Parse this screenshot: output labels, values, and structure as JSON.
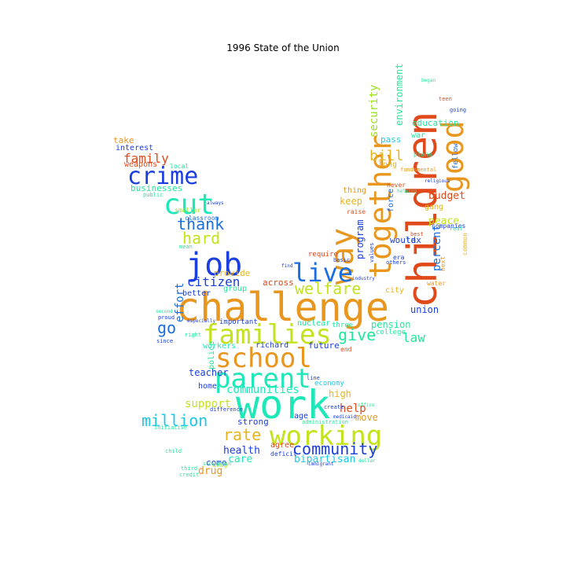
{
  "title": "1996 State of the Union",
  "words": [
    {
      "text": "challenge",
      "color": "#e8961e"
    },
    {
      "text": "children",
      "color": "#e04a1a"
    },
    {
      "text": "work",
      "color": "#1ee8b8"
    },
    {
      "text": "working",
      "color": "#c4e21e"
    },
    {
      "text": "families",
      "color": "#c4e21e"
    },
    {
      "text": "school",
      "color": "#e8961e"
    },
    {
      "text": "parent",
      "color": "#1ee8b8"
    },
    {
      "text": "job",
      "color": "#1a3ee0"
    },
    {
      "text": "cut",
      "color": "#1ee8b8"
    },
    {
      "text": "crime",
      "color": "#1a3ee0"
    },
    {
      "text": "together",
      "color": "#e8961e"
    },
    {
      "text": "way",
      "color": "#e8961e"
    },
    {
      "text": "good",
      "color": "#e8961e"
    },
    {
      "text": "live",
      "color": "#1a6ee0"
    },
    {
      "text": "welfare",
      "color": "#c4e21e"
    },
    {
      "text": "community",
      "color": "#1a3ee0"
    },
    {
      "text": "million",
      "color": "#1ec8e8"
    },
    {
      "text": "rate",
      "color": "#e8b41e"
    },
    {
      "text": "thank",
      "color": "#1a6ee0"
    },
    {
      "text": "hard",
      "color": "#c4e21e"
    },
    {
      "text": "citizen",
      "color": "#1a3ee0"
    },
    {
      "text": "give",
      "color": "#1ee89a"
    },
    {
      "text": "family",
      "color": "#e04a1a"
    },
    {
      "text": "bill",
      "color": "#e8b41e"
    },
    {
      "text": "security",
      "color": "#9ae21e"
    },
    {
      "text": "percent",
      "color": "#1a6ee0"
    },
    {
      "text": "budget",
      "color": "#e04a1a"
    },
    {
      "text": "peace",
      "color": "#c4e21e"
    },
    {
      "text": "go",
      "color": "#1a6ee0"
    },
    {
      "text": "effort",
      "color": "#1a6ee0"
    },
    {
      "text": "communities",
      "color": "#1ee8b8"
    },
    {
      "text": "support",
      "color": "#c4e21e"
    },
    {
      "text": "help",
      "color": "#e04a1a"
    },
    {
      "text": "health",
      "color": "#1a3ee0"
    },
    {
      "text": "bipartisan",
      "color": "#1ec8e8"
    },
    {
      "text": "care",
      "color": "#1ee8b8"
    },
    {
      "text": "drug",
      "color": "#e8961e"
    },
    {
      "text": "come",
      "color": "#1a3ee0"
    },
    {
      "text": "law",
      "color": "#1ee89a"
    },
    {
      "text": "pension",
      "color": "#1ee89a"
    },
    {
      "text": "union",
      "color": "#1a3ee0"
    },
    {
      "text": "program",
      "color": "#1a3ee0"
    },
    {
      "text": "environment",
      "color": "#1ee89a"
    },
    {
      "text": "education",
      "color": "#1ee89a"
    },
    {
      "text": "keep",
      "color": "#e8b41e"
    },
    {
      "text": "businesses",
      "color": "#1ee89a"
    },
    {
      "text": "take",
      "color": "#e8961e"
    },
    {
      "text": "interest",
      "color": "#1a3ee0"
    },
    {
      "text": "weapons",
      "color": "#e04a1a"
    },
    {
      "text": "teacher",
      "color": "#1a3ee0"
    },
    {
      "text": "home",
      "color": "#1a3ee0"
    },
    {
      "text": "high",
      "color": "#e8b41e"
    },
    {
      "text": "move",
      "color": "#e8961e"
    },
    {
      "text": "agree",
      "color": "#e04a1a"
    },
    {
      "text": "strong",
      "color": "#1a3ee0"
    },
    {
      "text": "police",
      "color": "#1ee89a"
    },
    {
      "text": "pass",
      "color": "#1ec8e8"
    },
    {
      "text": "long",
      "color": "#e8b41e"
    },
    {
      "text": "tax",
      "color": "#1a3ee0"
    },
    {
      "text": "would",
      "color": "#1a3ee0"
    },
    {
      "text": "thing",
      "color": "#e8961e"
    },
    {
      "text": "future",
      "color": "#1a3ee0"
    },
    {
      "text": "workers",
      "color": "#1ee8b8"
    },
    {
      "text": "richard",
      "color": "#1a3ee0"
    },
    {
      "text": "across",
      "color": "#e04a1a"
    },
    {
      "text": "provide",
      "color": "#e8b41e"
    },
    {
      "text": "better",
      "color": "#1a3ee0"
    },
    {
      "text": "group",
      "color": "#1ee89a"
    },
    {
      "text": "age",
      "color": "#1a3ee0"
    },
    {
      "text": "nuclear",
      "color": "#1ee89a"
    },
    {
      "text": "important",
      "color": "#1a3ee0"
    },
    {
      "text": "gang",
      "color": "#e8b41e"
    },
    {
      "text": "fellow",
      "color": "#1a6ee0"
    },
    {
      "text": "war",
      "color": "#1ee89a"
    },
    {
      "text": "force",
      "color": "#1a6ee0"
    },
    {
      "text": "require",
      "color": "#e04a1a"
    },
    {
      "text": "college",
      "color": "#1ee89a"
    },
    {
      "text": "city",
      "color": "#e8b41e"
    },
    {
      "text": "economy",
      "color": "#1ec8e8"
    },
    {
      "text": "deficit",
      "color": "#1a3ee0"
    },
    {
      "text": "drug",
      "color": "#9ae21e"
    },
    {
      "text": "local",
      "color": "#1ee89a"
    },
    {
      "text": "public",
      "color": "#1ee89a"
    },
    {
      "text": "classroom",
      "color": "#1a6ee0"
    },
    {
      "text": "end",
      "color": "#e04a1a"
    },
    {
      "text": "credit",
      "color": "#1ee89a"
    },
    {
      "text": "line",
      "color": "#1a3ee0"
    },
    {
      "text": "never",
      "color": "#e04a1a"
    },
    {
      "text": "companies",
      "color": "#1a3ee0"
    },
    {
      "text": "plans",
      "color": "#1ee89a"
    },
    {
      "text": "values",
      "color": "#1a3ee0"
    },
    {
      "text": "raise",
      "color": "#e04a1a"
    },
    {
      "text": "initiative",
      "color": "#1ee89a"
    },
    {
      "text": "difference",
      "color": "#1a3ee0"
    },
    {
      "text": "administration",
      "color": "#1ee89a"
    },
    {
      "text": "since",
      "color": "#1a3ee0"
    },
    {
      "text": "proud",
      "color": "#1a3ee0"
    },
    {
      "text": "right",
      "color": "#1ee89a"
    },
    {
      "text": "second",
      "color": "#1ee89a"
    },
    {
      "text": "others",
      "color": "#1a3ee0"
    },
    {
      "text": "industry",
      "color": "#1a3ee0"
    },
    {
      "text": "basic",
      "color": "#1a3ee0"
    },
    {
      "text": "era",
      "color": "#1a3ee0"
    },
    {
      "text": "water",
      "color": "#e8961e"
    },
    {
      "text": "create",
      "color": "#1a3ee0"
    },
    {
      "text": "office",
      "color": "#1ee89a"
    },
    {
      "text": "fundamental",
      "color": "#e8961e"
    },
    {
      "text": "three",
      "color": "#1ee89a"
    },
    {
      "text": "strengthen",
      "color": "#1ee89a"
    },
    {
      "text": "child",
      "color": "#1ee89a"
    },
    {
      "text": "third",
      "color": "#1ee89a"
    },
    {
      "text": "smaller",
      "color": "#9ae21e"
    },
    {
      "text": "always",
      "color": "#1a3ee0"
    },
    {
      "text": "mean",
      "color": "#1ee89a"
    },
    {
      "text": "especially",
      "color": "#1a3ee0"
    },
    {
      "text": "find",
      "color": "#1a3ee0"
    },
    {
      "text": "best",
      "color": "#e04a1a"
    },
    {
      "text": "real",
      "color": "#1ee89a"
    },
    {
      "text": "next",
      "color": "#e8961e"
    },
    {
      "text": "common",
      "color": "#e8b41e"
    },
    {
      "text": "teen",
      "color": "#e04a1a"
    },
    {
      "text": "going",
      "color": "#1a3ee0"
    },
    {
      "text": "began",
      "color": "#1ee89a"
    },
    {
      "text": "helping",
      "color": "#1ee89a"
    },
    {
      "text": "religious",
      "color": "#1a3ee0"
    },
    {
      "text": "medicaid",
      "color": "#1a3ee0"
    },
    {
      "text": "immigrant",
      "color": "#1a3ee0"
    },
    {
      "text": "dollar",
      "color": "#1ee89a"
    }
  ]
}
